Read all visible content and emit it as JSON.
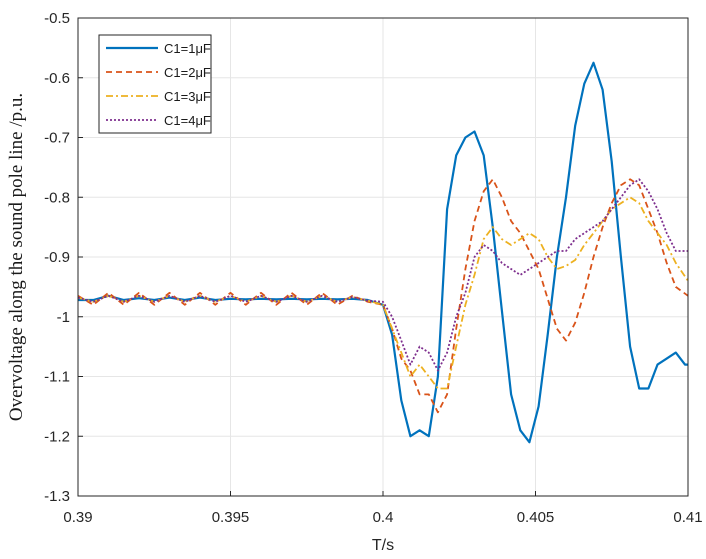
{
  "chart_data": {
    "type": "line",
    "title": "",
    "xlabel": "T/s",
    "ylabel": "Overvoltage along the sound pole line /p.u.",
    "xlim": [
      0.39,
      0.41
    ],
    "ylim": [
      -1.3,
      -0.5
    ],
    "xticks": [
      0.39,
      0.395,
      0.4,
      0.405,
      0.41
    ],
    "xtick_labels": [
      "0.39",
      "0.395",
      "0.4",
      "0.405",
      "0.41"
    ],
    "yticks": [
      -1.3,
      -1.2,
      -1.1,
      -1.0,
      -0.9,
      -0.8,
      -0.7,
      -0.6,
      -0.5
    ],
    "ytick_labels": [
      "-1.3",
      "-1.2",
      "-1.1",
      "-1",
      "-0.9",
      "-0.8",
      "-0.7",
      "-0.6",
      "-0.5"
    ],
    "grid": true,
    "legend_position": "top-left",
    "series": [
      {
        "name": "C1=1μF",
        "color": "#0072BD",
        "dash": "solid",
        "x": [
          0.39,
          0.3905,
          0.391,
          0.3915,
          0.392,
          0.3925,
          0.393,
          0.3935,
          0.394,
          0.3945,
          0.395,
          0.3955,
          0.396,
          0.3965,
          0.397,
          0.3975,
          0.398,
          0.3985,
          0.399,
          0.3995,
          0.4,
          0.4003,
          0.4006,
          0.4009,
          0.4012,
          0.4015,
          0.4018,
          0.4021,
          0.4024,
          0.4027,
          0.403,
          0.4033,
          0.4036,
          0.4039,
          0.4042,
          0.4045,
          0.4048,
          0.4051,
          0.4054,
          0.4057,
          0.406,
          0.4063,
          0.4066,
          0.4069,
          0.4072,
          0.4075,
          0.4078,
          0.4081,
          0.4084,
          0.4087,
          0.409,
          0.4093,
          0.4096,
          0.4099,
          0.41
        ],
        "values": [
          -0.972,
          -0.972,
          -0.965,
          -0.972,
          -0.969,
          -0.972,
          -0.968,
          -0.972,
          -0.968,
          -0.972,
          -0.97,
          -0.971,
          -0.97,
          -0.971,
          -0.97,
          -0.971,
          -0.97,
          -0.971,
          -0.97,
          -0.972,
          -0.98,
          -1.03,
          -1.14,
          -1.2,
          -1.19,
          -1.2,
          -1.1,
          -0.82,
          -0.73,
          -0.7,
          -0.69,
          -0.73,
          -0.85,
          -0.99,
          -1.13,
          -1.19,
          -1.21,
          -1.15,
          -1.03,
          -0.9,
          -0.8,
          -0.68,
          -0.61,
          -0.575,
          -0.62,
          -0.74,
          -0.9,
          -1.05,
          -1.12,
          -1.12,
          -1.08,
          -1.07,
          -1.06,
          -1.08,
          -1.08
        ]
      },
      {
        "name": "C1=2μF",
        "color": "#D95319",
        "dash": "dashed",
        "x": [
          0.39,
          0.3905,
          0.391,
          0.3915,
          0.392,
          0.3925,
          0.393,
          0.3935,
          0.394,
          0.3945,
          0.395,
          0.3955,
          0.396,
          0.3965,
          0.397,
          0.3975,
          0.398,
          0.3985,
          0.399,
          0.3995,
          0.4,
          0.4003,
          0.4006,
          0.4009,
          0.4012,
          0.4015,
          0.4018,
          0.4021,
          0.4024,
          0.4027,
          0.403,
          0.4033,
          0.4036,
          0.4039,
          0.4042,
          0.4045,
          0.4048,
          0.4051,
          0.4054,
          0.4057,
          0.406,
          0.4063,
          0.4066,
          0.4069,
          0.4072,
          0.4075,
          0.4078,
          0.4081,
          0.4084,
          0.4087,
          0.409,
          0.4093,
          0.4096,
          0.41
        ],
        "values": [
          -0.965,
          -0.98,
          -0.96,
          -0.98,
          -0.96,
          -0.98,
          -0.96,
          -0.98,
          -0.96,
          -0.98,
          -0.96,
          -0.98,
          -0.96,
          -0.98,
          -0.96,
          -0.98,
          -0.96,
          -0.98,
          -0.965,
          -0.975,
          -0.98,
          -1.02,
          -1.07,
          -1.09,
          -1.13,
          -1.13,
          -1.16,
          -1.13,
          -1.02,
          -0.92,
          -0.84,
          -0.79,
          -0.77,
          -0.8,
          -0.84,
          -0.86,
          -0.89,
          -0.92,
          -0.97,
          -1.02,
          -1.04,
          -1.01,
          -0.96,
          -0.9,
          -0.85,
          -0.81,
          -0.78,
          -0.77,
          -0.78,
          -0.82,
          -0.86,
          -0.91,
          -0.95,
          -0.965
        ]
      },
      {
        "name": "C1=3μF",
        "color": "#EDB120",
        "dash": "dashdot",
        "x": [
          0.39,
          0.3905,
          0.391,
          0.3915,
          0.392,
          0.3925,
          0.393,
          0.3935,
          0.394,
          0.3945,
          0.395,
          0.3955,
          0.396,
          0.3965,
          0.397,
          0.3975,
          0.398,
          0.3985,
          0.399,
          0.3995,
          0.4,
          0.4003,
          0.4006,
          0.4009,
          0.4012,
          0.4015,
          0.4018,
          0.4021,
          0.4024,
          0.4027,
          0.403,
          0.4033,
          0.4036,
          0.4039,
          0.4042,
          0.4045,
          0.4048,
          0.4051,
          0.4054,
          0.4057,
          0.406,
          0.4063,
          0.4066,
          0.4069,
          0.4072,
          0.4075,
          0.4078,
          0.4081,
          0.4084,
          0.4087,
          0.409,
          0.4093,
          0.4096,
          0.41
        ],
        "values": [
          -0.968,
          -0.975,
          -0.965,
          -0.975,
          -0.965,
          -0.975,
          -0.965,
          -0.975,
          -0.965,
          -0.975,
          -0.965,
          -0.975,
          -0.965,
          -0.975,
          -0.965,
          -0.975,
          -0.965,
          -0.975,
          -0.967,
          -0.973,
          -0.98,
          -1.02,
          -1.06,
          -1.1,
          -1.08,
          -1.1,
          -1.12,
          -1.12,
          -1.05,
          -0.98,
          -0.93,
          -0.87,
          -0.85,
          -0.87,
          -0.88,
          -0.87,
          -0.86,
          -0.87,
          -0.9,
          -0.92,
          -0.915,
          -0.905,
          -0.88,
          -0.86,
          -0.84,
          -0.82,
          -0.81,
          -0.8,
          -0.81,
          -0.84,
          -0.86,
          -0.88,
          -0.91,
          -0.94
        ]
      },
      {
        "name": "C1=4μF",
        "color": "#7E2F8E",
        "dash": "dotted",
        "x": [
          0.39,
          0.3905,
          0.391,
          0.3915,
          0.392,
          0.3925,
          0.393,
          0.3935,
          0.394,
          0.3945,
          0.395,
          0.3955,
          0.396,
          0.3965,
          0.397,
          0.3975,
          0.398,
          0.3985,
          0.399,
          0.3995,
          0.4,
          0.4003,
          0.4006,
          0.4009,
          0.4012,
          0.4015,
          0.4018,
          0.4021,
          0.4024,
          0.4027,
          0.403,
          0.4033,
          0.4036,
          0.4039,
          0.4042,
          0.4045,
          0.4048,
          0.4051,
          0.4054,
          0.4057,
          0.406,
          0.4063,
          0.4066,
          0.4069,
          0.4072,
          0.4075,
          0.4078,
          0.4081,
          0.4084,
          0.4087,
          0.409,
          0.4093,
          0.4096,
          0.41
        ],
        "values": [
          -0.968,
          -0.975,
          -0.965,
          -0.975,
          -0.965,
          -0.975,
          -0.965,
          -0.975,
          -0.965,
          -0.975,
          -0.965,
          -0.975,
          -0.965,
          -0.975,
          -0.965,
          -0.975,
          -0.965,
          -0.975,
          -0.967,
          -0.973,
          -0.975,
          -1.0,
          -1.04,
          -1.08,
          -1.05,
          -1.06,
          -1.09,
          -1.06,
          -1.0,
          -0.96,
          -0.9,
          -0.88,
          -0.89,
          -0.91,
          -0.92,
          -0.93,
          -0.92,
          -0.91,
          -0.9,
          -0.89,
          -0.89,
          -0.87,
          -0.86,
          -0.85,
          -0.84,
          -0.82,
          -0.8,
          -0.78,
          -0.77,
          -0.79,
          -0.82,
          -0.86,
          -0.89,
          -0.89
        ]
      }
    ]
  }
}
